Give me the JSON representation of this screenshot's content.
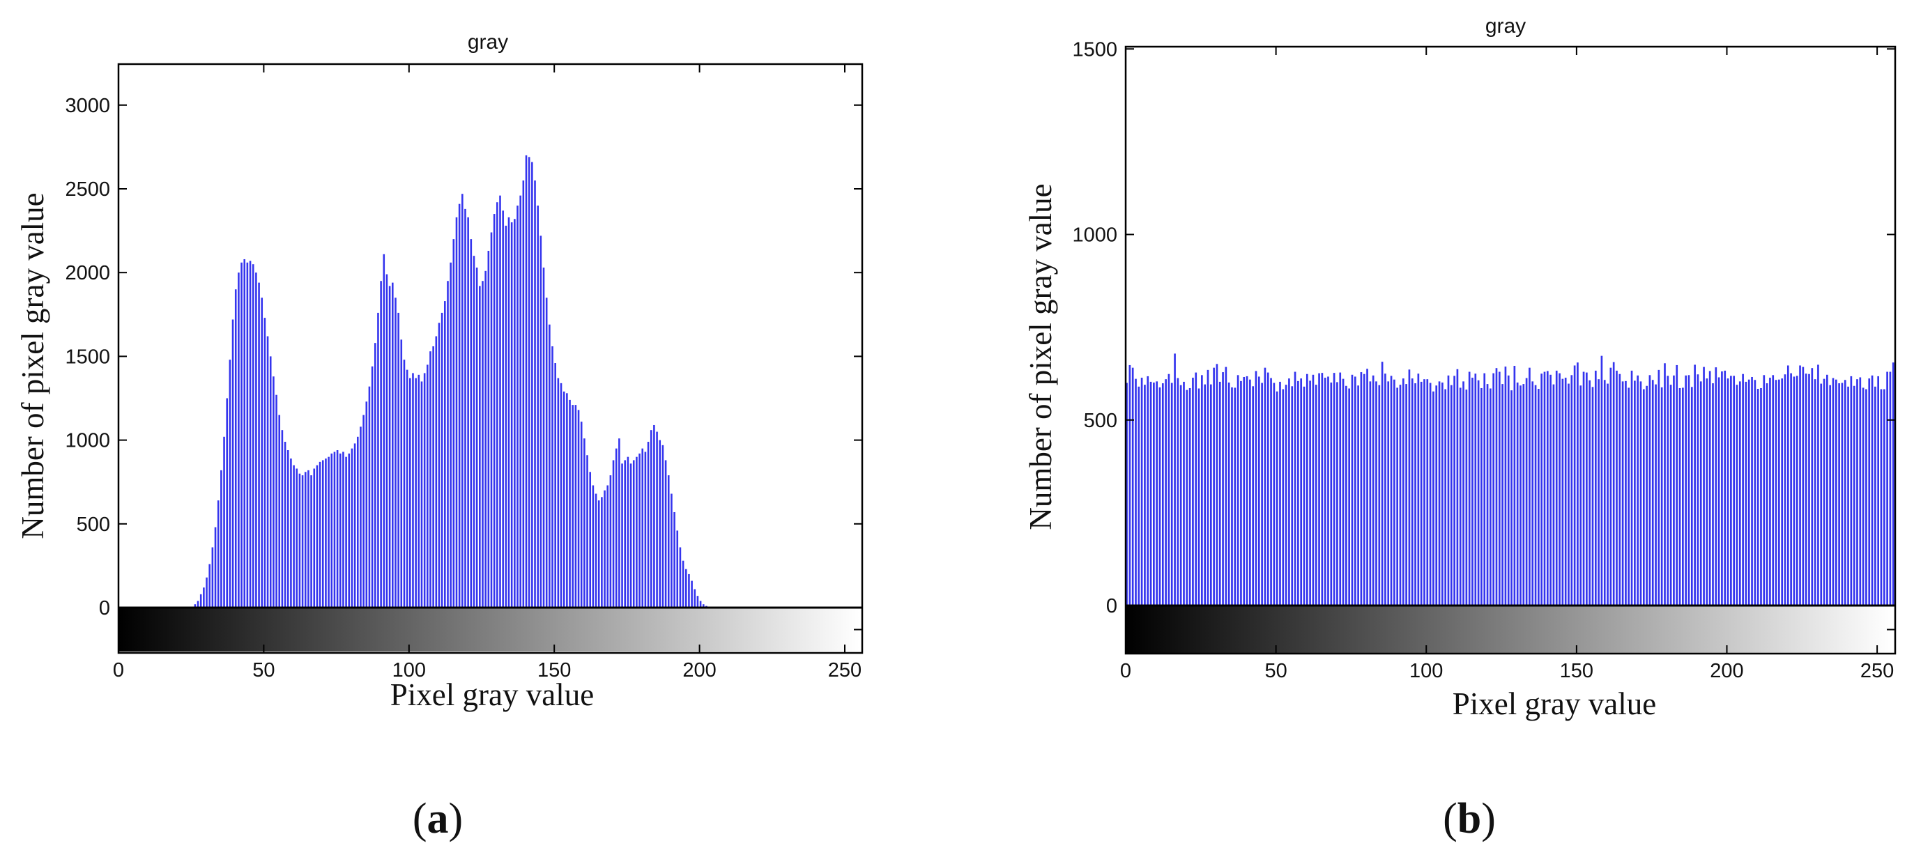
{
  "chart_data": [
    {
      "panel": "a",
      "type": "bar",
      "title": "gray",
      "xlabel": "Pixel gray value",
      "ylabel": "Number of pixel gray value",
      "xlim": [
        0,
        256
      ],
      "ylim": [
        -270,
        3250
      ],
      "xticks": [
        0,
        50,
        100,
        150,
        200,
        250
      ],
      "yticks": [
        0,
        500,
        1000,
        1500,
        2000,
        2500,
        3000
      ],
      "bar_color": "#3434ee",
      "colorbar": "grayscale 0-255",
      "grid": false,
      "x_start": 0,
      "values": [
        0,
        0,
        0,
        0,
        0,
        0,
        0,
        0,
        0,
        0,
        0,
        0,
        0,
        0,
        0,
        0,
        0,
        0,
        0,
        0,
        0,
        0,
        0,
        0,
        0,
        0,
        20,
        40,
        80,
        120,
        180,
        260,
        360,
        480,
        640,
        820,
        1020,
        1250,
        1480,
        1720,
        1900,
        2000,
        2060,
        2080,
        2060,
        2070,
        2050,
        2000,
        1940,
        1850,
        1730,
        1620,
        1500,
        1380,
        1270,
        1150,
        1060,
        990,
        940,
        890,
        850,
        830,
        800,
        790,
        810,
        820,
        790,
        830,
        850,
        870,
        880,
        890,
        900,
        920,
        930,
        940,
        920,
        930,
        900,
        920,
        950,
        980,
        1020,
        1080,
        1150,
        1230,
        1320,
        1440,
        1580,
        1760,
        1950,
        2110,
        1990,
        1920,
        1940,
        1850,
        1760,
        1600,
        1480,
        1420,
        1370,
        1400,
        1370,
        1390,
        1350,
        1400,
        1450,
        1530,
        1560,
        1620,
        1700,
        1760,
        1830,
        1950,
        2060,
        2200,
        2330,
        2410,
        2470,
        2380,
        2330,
        2200,
        2100,
        2030,
        1920,
        1950,
        2010,
        2130,
        2240,
        2350,
        2420,
        2460,
        2370,
        2280,
        2330,
        2300,
        2320,
        2400,
        2460,
        2550,
        2700,
        2690,
        2660,
        2550,
        2400,
        2220,
        2030,
        1850,
        1690,
        1560,
        1460,
        1370,
        1340,
        1290,
        1280,
        1240,
        1210,
        1210,
        1180,
        1110,
        1010,
        910,
        810,
        730,
        680,
        640,
        660,
        700,
        730,
        790,
        880,
        950,
        1010,
        860,
        880,
        900,
        860,
        880,
        900,
        920,
        950,
        930,
        990,
        1060,
        1090,
        1050,
        1000,
        970,
        880,
        790,
        680,
        570,
        460,
        360,
        280,
        230,
        200,
        160,
        110,
        70,
        40,
        20,
        10,
        5,
        5,
        3,
        2,
        2,
        2,
        2,
        2,
        2,
        2,
        2,
        2,
        2,
        2,
        2,
        2,
        2,
        2,
        2,
        2,
        2,
        2,
        2,
        2,
        2,
        2,
        2,
        2
      ]
    },
    {
      "panel": "b",
      "type": "bar",
      "title": "gray",
      "xlabel": "Pixel gray value",
      "ylabel": "Number of pixel gray value",
      "xlim": [
        0,
        256
      ],
      "ylim": [
        -130,
        1510
      ],
      "xticks": [
        0,
        50,
        100,
        150,
        200,
        250
      ],
      "yticks": [
        0,
        500,
        1000,
        1500
      ],
      "bar_color": "#3434ee",
      "colorbar": "grayscale 0-255",
      "grid": false,
      "x_start": 0,
      "values": [
        600,
        648,
        641,
        611,
        590,
        614,
        595,
        618,
        603,
        601,
        604,
        588,
        599,
        610,
        624,
        600,
        679,
        613,
        594,
        603,
        581,
        586,
        614,
        628,
        585,
        621,
        596,
        635,
        596,
        641,
        651,
        603,
        629,
        643,
        601,
        588,
        587,
        621,
        605,
        616,
        618,
        609,
        591,
        632,
        617,
        600,
        641,
        628,
        613,
        600,
        577,
        603,
        583,
        595,
        612,
        591,
        630,
        605,
        612,
        590,
        624,
        606,
        622,
        595,
        626,
        627,
        614,
        617,
        601,
        627,
        602,
        628,
        611,
        592,
        585,
        622,
        617,
        593,
        629,
        624,
        638,
        604,
        620,
        604,
        594,
        657,
        625,
        604,
        619,
        609,
        587,
        595,
        612,
        597,
        636,
        612,
        599,
        625,
        603,
        610,
        610,
        600,
        577,
        593,
        604,
        601,
        583,
        620,
        594,
        619,
        637,
        587,
        604,
        582,
        630,
        614,
        625,
        607,
        586,
        626,
        597,
        585,
        626,
        640,
        630,
        597,
        644,
        620,
        580,
        646,
        601,
        593,
        597,
        613,
        641,
        604,
        594,
        584,
        625,
        630,
        632,
        622,
        596,
        633,
        626,
        611,
        614,
        598,
        621,
        647,
        655,
        593,
        630,
        628,
        607,
        589,
        633,
        610,
        673,
        608,
        598,
        641,
        656,
        633,
        624,
        604,
        605,
        587,
        633,
        606,
        620,
        604,
        583,
        592,
        621,
        608,
        596,
        635,
        588,
        653,
        619,
        595,
        620,
        648,
        586,
        587,
        620,
        621,
        589,
        649,
        623,
        604,
        643,
        612,
        632,
        599,
        642,
        615,
        631,
        633,
        612,
        619,
        619,
        595,
        604,
        624,
        603,
        609,
        616,
        608,
        584,
        586,
        621,
        599,
        614,
        621,
        608,
        609,
        612,
        623,
        647,
        626,
        617,
        619,
        647,
        643,
        625,
        624,
        640,
        610,
        649,
        598,
        611,
        622,
        594,
        613,
        609,
        599,
        600,
        608,
        590,
        618,
        592,
        610,
        615,
        587,
        583,
        612,
        620,
        590,
        618,
        583,
        583,
        630,
        630,
        655
      ]
    }
  ],
  "panel_labels": {
    "a": "a",
    "b": "b"
  }
}
